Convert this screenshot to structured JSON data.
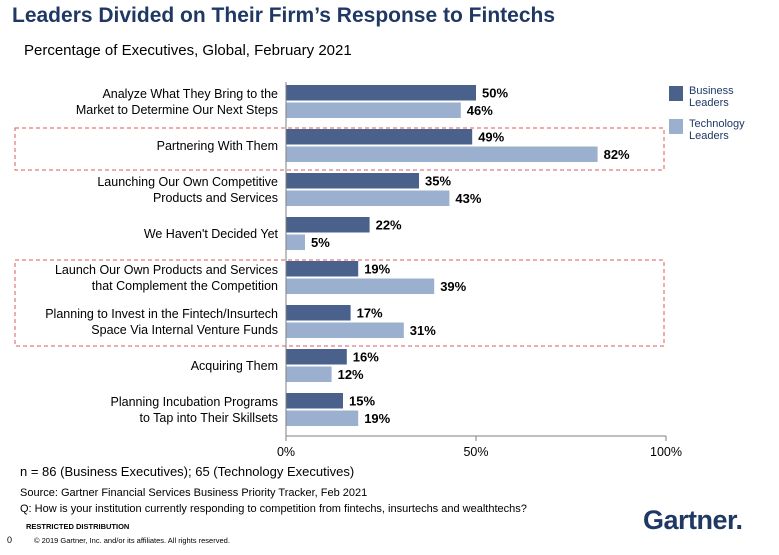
{
  "title": "Leaders Divided on Their Firm’s Response to Fintechs",
  "subtitle": "Percentage of Executives, Global, February 2021",
  "chart_data": {
    "type": "bar",
    "orientation": "horizontal",
    "categories": [
      [
        "Analyze What They Bring to the",
        "Market to Determine Our Next Steps"
      ],
      [
        "Partnering With Them"
      ],
      [
        "Launching Our Own Competitive",
        "Products and Services"
      ],
      [
        "We Haven't Decided Yet"
      ],
      [
        "Launch Our Own Products and Services",
        "that Complement the Competition"
      ],
      [
        "Planning to Invest in the Fintech/Insurtech",
        "Space Via Internal Venture Funds"
      ],
      [
        "Acquiring Them"
      ],
      [
        "Planning Incubation Programs",
        "to Tap into Their Skillsets"
      ]
    ],
    "series": [
      {
        "name": "Business Leaders",
        "legend_lines": [
          "Business",
          "Leaders"
        ],
        "color": "#4a628b",
        "values": [
          50,
          49,
          35,
          22,
          19,
          17,
          16,
          15
        ]
      },
      {
        "name": "Technology Leaders",
        "legend_lines": [
          "Technology",
          "Leaders"
        ],
        "color": "#9bafce",
        "values": [
          46,
          82,
          43,
          5,
          39,
          31,
          12,
          19
        ]
      }
    ],
    "xlim": [
      0,
      100
    ],
    "x_ticks": [
      0,
      50,
      100
    ],
    "value_suffix": "%",
    "legend": "top-right",
    "highlight_groups": [
      [
        1,
        1
      ],
      [
        4,
        5
      ]
    ],
    "highlight_color": "#e05a5a"
  },
  "notes": {
    "n": "n = 86 (Business Executives); 65 (Technology  Executives)",
    "source": "Source: Gartner Financial Services Business Priority Tracker, Feb 2021",
    "question": "Q: How is your institution currently responding to competition from fintechs, insurtechs and wealthtechs?"
  },
  "footer": {
    "restricted": "RESTRICTED DISTRIBUTION",
    "copyright": "© 2019 Gartner, Inc. and/or its affiliates. All rights reserved.",
    "page": "0"
  },
  "logo": "Gartner."
}
